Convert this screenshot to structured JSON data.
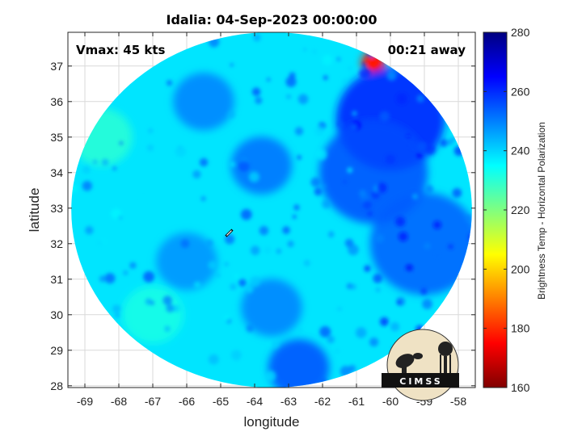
{
  "chart_data": {
    "type": "heatmap",
    "title": "Idalia: 04-Sep-2023 00:00:00",
    "xlabel": "longitude",
    "ylabel": "latitude",
    "xlim": [
      -69.5,
      -57.5
    ],
    "ylim": [
      27.95,
      37.95
    ],
    "x_ticks": [
      -69,
      -68,
      -67,
      -66,
      -65,
      -64,
      -63,
      -62,
      -61,
      -60,
      -59,
      -58
    ],
    "y_ticks": [
      28,
      29,
      30,
      31,
      32,
      33,
      34,
      35,
      36,
      37
    ],
    "x_tick_labels": [
      "-69",
      "-68",
      "-67",
      "-66",
      "-65",
      "-64",
      "-63",
      "-62",
      "-61",
      "-60",
      "-59",
      "-58"
    ],
    "y_tick_labels": [
      "28",
      "29",
      "30",
      "31",
      "32",
      "33",
      "34",
      "35",
      "36",
      "37"
    ],
    "grid": true,
    "annotations": {
      "vmax": "Vmax: 45 kts",
      "time_away": "00:21 away"
    },
    "storm_center": {
      "lon": -64.75,
      "lat": 32.3
    },
    "swath": {
      "center_lon": -63.5,
      "center_lat": 32.95,
      "lon_radius": 5.9,
      "lat_radius": 5.0
    },
    "colorbar": {
      "label": "Brightness Temp - Horizontal Polarization",
      "range": [
        160,
        280
      ],
      "ticks": [
        160,
        180,
        200,
        220,
        240,
        260,
        280
      ],
      "tick_labels": [
        "160",
        "180",
        "200",
        "220",
        "240",
        "260",
        "280"
      ],
      "colormap": "jet"
    },
    "field_features": [
      {
        "lon": -63.5,
        "lat": 33.0,
        "value": 238,
        "note": "background"
      },
      {
        "lon": -60.5,
        "lat": 37.1,
        "value": 178,
        "note": "warm/low Tb spot, northeast edge"
      },
      {
        "lon": -60.0,
        "lat": 35.5,
        "value": 262,
        "note": "cold band northeast"
      },
      {
        "lon": -60.5,
        "lat": 34.0,
        "value": 256,
        "note": "cold band"
      },
      {
        "lon": -59.0,
        "lat": 32.0,
        "value": 254,
        "note": "cold band east"
      },
      {
        "lon": -63.8,
        "lat": 34.2,
        "value": 252,
        "note": "scattered cold cells"
      },
      {
        "lon": -65.5,
        "lat": 36.0,
        "value": 250,
        "note": "scattered cold cells"
      },
      {
        "lon": -66.0,
        "lat": 31.5,
        "value": 248,
        "note": "scattered cold cells"
      },
      {
        "lon": -63.5,
        "lat": 30.2,
        "value": 250,
        "note": "scattered cold cells"
      },
      {
        "lon": -62.7,
        "lat": 28.5,
        "value": 256,
        "note": "scattered cold cells"
      },
      {
        "lon": -68.5,
        "lat": 35.0,
        "value": 230,
        "note": "warmer Tb NW edge"
      },
      {
        "lon": -67.0,
        "lat": 30.0,
        "value": 232,
        "note": "warmer Tb SW"
      }
    ]
  },
  "logo": {
    "text": "CIMSS"
  }
}
